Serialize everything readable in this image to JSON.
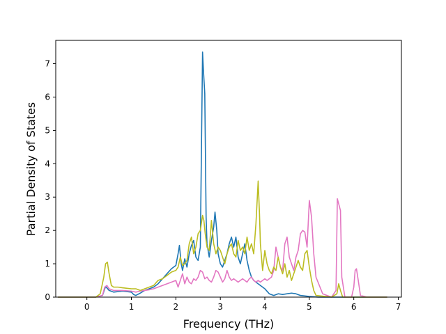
{
  "chart_data": {
    "type": "line",
    "title": "",
    "xlabel": "Frequency (THz)",
    "ylabel": "Partial Density of States",
    "xlim": [
      -0.7,
      7.07
    ],
    "ylim": [
      0,
      7.7
    ],
    "xticks": [
      0,
      1,
      2,
      3,
      4,
      5,
      6,
      7
    ],
    "yticks": [
      0,
      1,
      2,
      3,
      4,
      5,
      6,
      7
    ],
    "grid": false,
    "legend": "none",
    "series": [
      {
        "color": "#1f77b4",
        "x": [
          -0.65,
          0.0,
          0.2,
          0.35,
          0.42,
          0.5,
          0.6,
          0.8,
          1.0,
          1.05,
          1.1,
          1.2,
          1.3,
          1.4,
          1.5,
          1.6,
          1.7,
          1.8,
          1.9,
          2.0,
          2.05,
          2.08,
          2.12,
          2.15,
          2.2,
          2.25,
          2.3,
          2.35,
          2.4,
          2.45,
          2.5,
          2.55,
          2.6,
          2.62,
          2.65,
          2.68,
          2.7,
          2.75,
          2.8,
          2.85,
          2.88,
          2.92,
          2.95,
          3.0,
          3.05,
          3.1,
          3.15,
          3.2,
          3.25,
          3.3,
          3.35,
          3.4,
          3.45,
          3.5,
          3.55,
          3.6,
          3.65,
          3.7,
          3.75,
          3.8,
          3.85,
          3.9,
          3.95,
          4.0,
          4.1,
          4.2,
          4.3,
          4.4,
          4.5,
          4.6,
          4.7,
          4.8,
          5.0,
          5.2,
          6.75
        ],
        "y": [
          0,
          0,
          0.0,
          0.05,
          0.32,
          0.2,
          0.15,
          0.18,
          0.15,
          0.08,
          0.05,
          0.12,
          0.2,
          0.25,
          0.3,
          0.4,
          0.55,
          0.7,
          0.85,
          0.95,
          1.3,
          1.55,
          1.0,
          0.8,
          1.15,
          0.9,
          1.3,
          1.55,
          1.7,
          1.2,
          1.1,
          1.5,
          7.35,
          6.8,
          6.1,
          2.4,
          1.6,
          1.2,
          1.7,
          2.1,
          2.55,
          2.0,
          1.3,
          1.0,
          0.9,
          1.1,
          1.3,
          1.6,
          1.8,
          1.5,
          1.8,
          1.2,
          1.0,
          1.3,
          1.6,
          1.1,
          0.8,
          0.6,
          0.5,
          0.45,
          0.4,
          0.35,
          0.3,
          0.25,
          0.1,
          0.05,
          0.1,
          0.08,
          0.1,
          0.12,
          0.1,
          0.05,
          0.02,
          0,
          0
        ]
      },
      {
        "color": "#e377c2",
        "x": [
          -0.65,
          0.0,
          0.2,
          0.35,
          0.4,
          0.45,
          0.5,
          0.6,
          0.8,
          1.0,
          1.1,
          1.2,
          1.3,
          1.4,
          1.5,
          1.6,
          1.7,
          1.8,
          1.9,
          2.0,
          2.05,
          2.1,
          2.15,
          2.2,
          2.25,
          2.3,
          2.35,
          2.4,
          2.45,
          2.5,
          2.55,
          2.6,
          2.65,
          2.7,
          2.75,
          2.8,
          2.85,
          2.9,
          2.95,
          3.0,
          3.05,
          3.1,
          3.15,
          3.2,
          3.25,
          3.3,
          3.35,
          3.4,
          3.45,
          3.5,
          3.55,
          3.6,
          3.65,
          3.7,
          3.75,
          3.8,
          3.85,
          3.9,
          3.95,
          4.0,
          4.05,
          4.1,
          4.15,
          4.2,
          4.25,
          4.3,
          4.35,
          4.4,
          4.45,
          4.5,
          4.55,
          4.6,
          4.65,
          4.7,
          4.75,
          4.8,
          4.85,
          4.9,
          4.95,
          5.0,
          5.05,
          5.1,
          5.15,
          5.3,
          5.5,
          5.6,
          5.63,
          5.66,
          5.7,
          5.73,
          5.8,
          5.95,
          6.0,
          6.03,
          6.06,
          6.1,
          6.15,
          6.3,
          6.75
        ],
        "y": [
          0,
          0,
          0.0,
          0.05,
          0.3,
          0.35,
          0.25,
          0.2,
          0.2,
          0.18,
          0.15,
          0.18,
          0.2,
          0.22,
          0.25,
          0.3,
          0.35,
          0.4,
          0.45,
          0.5,
          0.3,
          0.5,
          0.7,
          0.4,
          0.6,
          0.45,
          0.4,
          0.55,
          0.5,
          0.6,
          0.8,
          0.75,
          0.55,
          0.6,
          0.5,
          0.45,
          0.6,
          0.8,
          0.75,
          0.6,
          0.45,
          0.55,
          0.8,
          0.6,
          0.5,
          0.55,
          0.5,
          0.45,
          0.5,
          0.55,
          0.5,
          0.45,
          0.55,
          0.6,
          0.5,
          0.45,
          0.5,
          0.45,
          0.5,
          0.55,
          0.5,
          0.55,
          0.6,
          0.8,
          1.5,
          1.2,
          0.9,
          0.8,
          1.6,
          1.8,
          1.2,
          1.0,
          0.8,
          1.2,
          1.4,
          1.9,
          2.0,
          1.95,
          1.5,
          2.9,
          2.4,
          1.3,
          0.6,
          0.1,
          0,
          0.2,
          2.95,
          2.8,
          2.6,
          0.6,
          0,
          0,
          0.3,
          0.8,
          0.85,
          0.5,
          0.05,
          0,
          0
        ]
      },
      {
        "color": "#bcbd22",
        "x": [
          -0.65,
          0.0,
          0.2,
          0.3,
          0.38,
          0.42,
          0.46,
          0.5,
          0.55,
          0.6,
          0.7,
          0.8,
          1.0,
          1.1,
          1.2,
          1.3,
          1.4,
          1.5,
          1.6,
          1.7,
          1.8,
          1.9,
          2.0,
          2.05,
          2.1,
          2.15,
          2.2,
          2.25,
          2.3,
          2.35,
          2.4,
          2.45,
          2.5,
          2.55,
          2.6,
          2.63,
          2.66,
          2.7,
          2.75,
          2.8,
          2.85,
          2.9,
          2.95,
          3.0,
          3.05,
          3.1,
          3.15,
          3.2,
          3.25,
          3.3,
          3.35,
          3.4,
          3.45,
          3.5,
          3.55,
          3.6,
          3.65,
          3.7,
          3.75,
          3.8,
          3.85,
          3.88,
          3.9,
          3.95,
          4.0,
          4.05,
          4.1,
          4.15,
          4.2,
          4.25,
          4.3,
          4.35,
          4.4,
          4.45,
          4.5,
          4.55,
          4.6,
          4.65,
          4.7,
          4.75,
          4.8,
          4.85,
          4.9,
          4.95,
          5.0,
          5.05,
          5.1,
          5.15,
          5.5,
          5.62,
          5.66,
          5.7,
          5.75,
          6.75
        ],
        "y": [
          0,
          0,
          0.0,
          0.1,
          0.6,
          1.0,
          1.05,
          0.7,
          0.35,
          0.3,
          0.3,
          0.28,
          0.25,
          0.25,
          0.2,
          0.25,
          0.3,
          0.35,
          0.5,
          0.55,
          0.65,
          0.75,
          0.8,
          0.9,
          1.2,
          0.95,
          1.0,
          1.1,
          1.6,
          1.8,
          1.3,
          1.5,
          1.9,
          2.0,
          2.45,
          2.3,
          1.9,
          1.5,
          1.4,
          2.3,
          1.6,
          1.3,
          1.5,
          1.4,
          1.2,
          1.0,
          1.3,
          1.5,
          1.6,
          1.3,
          1.2,
          1.7,
          1.4,
          1.5,
          1.3,
          1.8,
          1.4,
          1.6,
          1.3,
          2.2,
          3.48,
          2.5,
          1.6,
          0.8,
          1.4,
          1.0,
          0.8,
          0.7,
          0.9,
          0.8,
          1.2,
          0.9,
          0.7,
          1.0,
          0.6,
          0.8,
          0.5,
          0.7,
          0.9,
          1.1,
          0.9,
          0.8,
          1.3,
          1.4,
          0.9,
          0.5,
          0.2,
          0.05,
          0,
          0.1,
          0.4,
          0.2,
          0,
          0
        ]
      }
    ]
  }
}
